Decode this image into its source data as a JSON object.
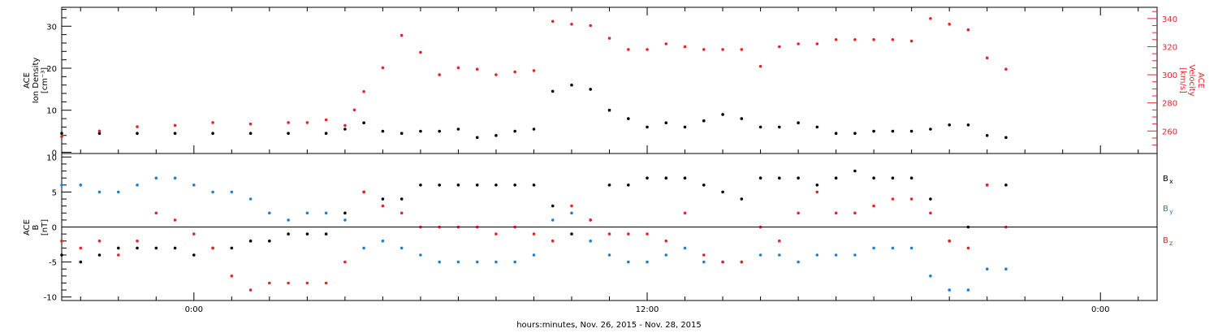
{
  "colors": {
    "black": "#000000",
    "red": "#e8232a",
    "blue": "#1e7fd6"
  },
  "xlabel": "hours:minutes, Nov. 26, 2015 - Nov. 28, 2015",
  "chart_data": [
    {
      "type": "scatter",
      "panel": "top",
      "ylabel_left": [
        "ACE",
        "Ion Density",
        "[cm⁻³]"
      ],
      "ylabel_right": [
        "ACE",
        "Velocity",
        "[km/s]"
      ],
      "x_ticks": [
        "0:00",
        "12:00",
        "0:00"
      ],
      "x_tick_hours": [
        0,
        12,
        24
      ],
      "xlim_hours": [
        -3.5,
        25.5
      ],
      "ylim_left": [
        -0.3,
        34.5
      ],
      "yticks_left": [
        0,
        10,
        20,
        30
      ],
      "ylim_right": [
        244,
        348
      ],
      "yticks_right": [
        260,
        280,
        300,
        320,
        340
      ],
      "series": [
        {
          "color": "black",
          "axis": "left",
          "x": [
            -3.5,
            -2.5,
            -1.5,
            -0.5,
            0.5,
            1.5,
            2.5,
            3.5,
            4.0,
            4.5,
            5.0,
            5.5,
            6.0,
            6.5,
            7.0,
            7.5,
            8.0,
            8.5,
            9.0,
            9.5,
            10.0,
            10.5,
            11.0,
            11.5,
            12.0,
            12.5,
            13.0,
            13.5,
            14.0,
            14.5,
            15.0,
            15.5,
            16.0,
            16.5,
            17.0,
            17.5,
            18.0,
            18.5,
            19.0,
            19.5,
            20.0,
            20.5,
            21.0,
            21.5
          ],
          "y": [
            4.5,
            4.5,
            4.5,
            4.5,
            4.5,
            4.5,
            4.5,
            4.5,
            5.5,
            7.0,
            5.0,
            4.5,
            5.0,
            5.0,
            5.5,
            3.5,
            4.0,
            5.0,
            5.5,
            14.5,
            16.0,
            15.0,
            10.0,
            8.0,
            6.0,
            7.0,
            6.0,
            7.5,
            9.0,
            8.0,
            6.0,
            6.0,
            7.0,
            6.0,
            4.5,
            4.5,
            5.0,
            5.0,
            5.0,
            5.5,
            6.5,
            6.5,
            4.0,
            3.5
          ]
        },
        {
          "color": "red",
          "axis": "right",
          "x": [
            -3.5,
            -2.5,
            -1.5,
            -0.5,
            0.5,
            1.5,
            2.5,
            3.0,
            3.5,
            4.0,
            4.25,
            4.5,
            5.0,
            5.5,
            6.0,
            6.5,
            7.0,
            7.5,
            8.0,
            8.5,
            9.0,
            9.5,
            10.0,
            10.5,
            11.0,
            11.5,
            12.0,
            12.5,
            13.0,
            13.5,
            14.0,
            14.5,
            15.0,
            15.5,
            16.0,
            16.5,
            17.0,
            17.5,
            18.0,
            18.5,
            19.0,
            19.5,
            20.0,
            20.5,
            21.0,
            21.5
          ],
          "y": [
            256,
            260,
            263,
            264,
            266,
            265,
            266,
            266,
            268,
            264,
            275,
            288,
            305,
            328,
            316,
            300,
            305,
            304,
            300,
            302,
            303,
            338,
            336,
            335,
            326,
            318,
            318,
            322,
            320,
            318,
            318,
            318,
            306,
            320,
            322,
            322,
            325,
            325,
            325,
            325,
            324,
            340,
            336,
            332,
            312,
            304
          ]
        }
      ]
    },
    {
      "type": "scatter",
      "panel": "bottom",
      "ylabel_left": [
        "ACE",
        "B",
        "[nT]"
      ],
      "x_ticks": [
        "0:00",
        "12:00",
        "0:00"
      ],
      "x_tick_hours": [
        0,
        12,
        24
      ],
      "xlim_hours": [
        -3.5,
        25.5
      ],
      "ylim": [
        -10.5,
        10.5
      ],
      "yticks": [
        -10,
        -5,
        0,
        5,
        10
      ],
      "series": [
        {
          "name": "B",
          "sub": "x",
          "color": "black",
          "x": [
            -3.5,
            -3.0,
            -2.5,
            -2.0,
            -1.5,
            -1.0,
            -0.5,
            0.0,
            0.5,
            1.0,
            1.5,
            2.0,
            2.5,
            3.0,
            3.5,
            4.0,
            4.5,
            5.0,
            5.5,
            6.0,
            6.5,
            7.0,
            7.5,
            8.0,
            8.5,
            9.0,
            9.5,
            10.0,
            10.5,
            11.0,
            11.5,
            12.0,
            12.5,
            13.0,
            13.5,
            14.0,
            14.5,
            15.0,
            15.5,
            16.0,
            16.5,
            17.0,
            17.5,
            18.0,
            18.5,
            19.0,
            19.5,
            20.0,
            20.5,
            21.0,
            21.5
          ],
          "y": [
            -4,
            -5,
            -4,
            -3,
            -3,
            -3,
            -3,
            -4,
            -3,
            -3,
            -2,
            -2,
            -1,
            -1,
            -1,
            2,
            5,
            4,
            4,
            6,
            6,
            6,
            6,
            6,
            6,
            6,
            3,
            -1,
            1,
            6,
            6,
            7,
            7,
            7,
            6,
            5,
            4,
            7,
            7,
            7,
            6,
            7,
            8,
            7,
            7,
            7,
            4,
            -2,
            0,
            6,
            6
          ]
        },
        {
          "name": "B",
          "sub": "y",
          "color": "blue",
          "x": [
            -3.5,
            -3.0,
            -2.5,
            -2.0,
            -1.5,
            -1.0,
            -0.5,
            0.0,
            0.5,
            1.0,
            1.5,
            2.0,
            2.5,
            3.0,
            3.5,
            4.0,
            4.5,
            5.0,
            5.5,
            6.0,
            6.5,
            7.0,
            7.5,
            8.0,
            8.5,
            9.0,
            9.5,
            10.0,
            10.5,
            11.0,
            11.5,
            12.0,
            12.5,
            13.0,
            13.5,
            14.0,
            14.5,
            15.0,
            15.5,
            16.0,
            16.5,
            17.0,
            17.5,
            18.0,
            18.5,
            19.0,
            19.5,
            20.0,
            20.5,
            21.0,
            21.5
          ],
          "y": [
            6,
            6,
            5,
            5,
            6,
            7,
            7,
            6,
            5,
            5,
            4,
            2,
            1,
            2,
            2,
            1,
            -3,
            -2,
            -3,
            -4,
            -5,
            -5,
            -5,
            -5,
            -5,
            -4,
            1,
            2,
            -2,
            -4,
            -5,
            -5,
            -4,
            -3,
            -5,
            -5,
            -5,
            -4,
            -4,
            -5,
            -4,
            -4,
            -4,
            -3,
            -3,
            -3,
            -7,
            -9,
            -9,
            -6,
            -6
          ]
        },
        {
          "name": "B",
          "sub": "z",
          "color": "red",
          "x": [
            -3.5,
            -3.0,
            -2.5,
            -2.0,
            -1.5,
            -1.0,
            -0.5,
            0.0,
            0.5,
            1.0,
            1.5,
            2.0,
            2.5,
            3.0,
            3.5,
            4.0,
            4.5,
            5.0,
            5.5,
            6.0,
            6.5,
            7.0,
            7.5,
            8.0,
            8.5,
            9.0,
            9.5,
            10.0,
            10.5,
            11.0,
            11.5,
            12.0,
            12.5,
            13.0,
            13.5,
            14.0,
            14.5,
            15.0,
            15.5,
            16.0,
            16.5,
            17.0,
            17.5,
            18.0,
            18.5,
            19.0,
            19.5,
            20.0,
            20.5,
            21.0,
            21.5
          ],
          "y": [
            -2,
            -3,
            -2,
            -4,
            -2,
            2,
            1,
            -1,
            -3,
            -7,
            -9,
            -8,
            -8,
            -8,
            -8,
            -5,
            5,
            3,
            2,
            0,
            0,
            0,
            0,
            -1,
            0,
            -1,
            -2,
            3,
            1,
            -1,
            -1,
            -1,
            -2,
            2,
            -4,
            -5,
            -5,
            0,
            -2,
            2,
            5,
            2,
            2,
            3,
            4,
            4,
            2,
            -2,
            -3,
            6,
            0
          ]
        }
      ]
    }
  ]
}
